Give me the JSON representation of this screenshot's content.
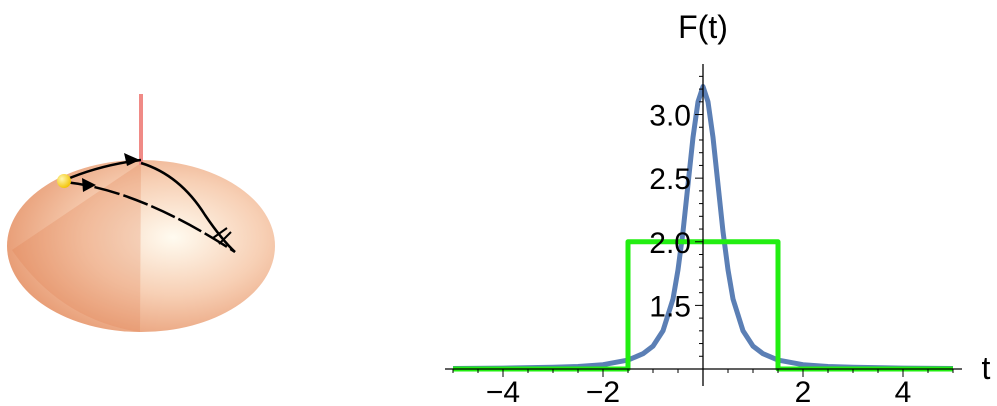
{
  "chart_data": {
    "type": "line",
    "xlabel": "t",
    "ylabel": "F(t)",
    "xlim": [
      -5,
      5
    ],
    "ylim": [
      1.0,
      3.35
    ],
    "x_ticks": [
      -4,
      -2,
      2,
      4
    ],
    "x_tick_labels": [
      "−4",
      "−2",
      "2",
      "4"
    ],
    "y_ticks": [
      1.5,
      2.0,
      2.5,
      3.0
    ],
    "y_tick_labels": [
      "1.5",
      "2.0",
      "2.5",
      "3.0"
    ],
    "grid": false,
    "series": [
      {
        "color": "#5b7fb5",
        "x": [
          -5,
          -4,
          -3,
          -2.5,
          -2,
          -1.5,
          -1.2,
          -1.0,
          -0.8,
          -0.6,
          -0.5,
          -0.4,
          -0.3,
          -0.2,
          -0.1,
          0,
          0.1,
          0.2,
          0.3,
          0.4,
          0.5,
          0.6,
          0.8,
          1.0,
          1.2,
          1.5,
          2,
          2.5,
          3,
          4,
          5
        ],
        "y": [
          1.004,
          1.007,
          1.013,
          1.02,
          1.034,
          1.07,
          1.12,
          1.18,
          1.3,
          1.55,
          1.78,
          2.08,
          2.45,
          2.82,
          3.1,
          3.22,
          3.1,
          2.82,
          2.45,
          2.08,
          1.78,
          1.55,
          1.3,
          1.18,
          1.12,
          1.07,
          1.034,
          1.02,
          1.013,
          1.007,
          1.004
        ]
      },
      {
        "color": "#22ee11",
        "x": [
          -5,
          -1.5,
          -1.5,
          1.5,
          1.5,
          5
        ],
        "y": [
          1.0,
          1.0,
          2.0,
          2.0,
          1.0,
          1.0
        ]
      }
    ]
  },
  "illustration": {
    "disk_colors": [
      "#e2895d",
      "#f7cfb4",
      "#fffbf0"
    ],
    "pin_color": "#f08a86",
    "ball_color": "#f2c200",
    "path_color": "#000000"
  }
}
